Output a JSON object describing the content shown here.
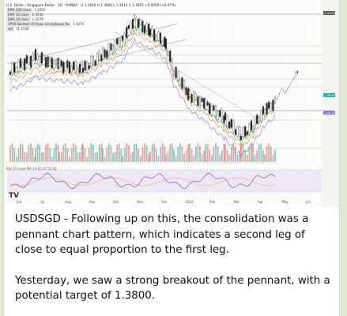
{
  "chart": {
    "symbol_title": "U.S. Dollar / Singapore Dollar · 1D · OANDA",
    "ohlc_readout": "O 1.3640  H 1.3666  L 1.3614  C 1.3655  +0.0009 (+0.07%)",
    "indicators": [
      {
        "label": "EMA 200 close",
        "value": "1.3452"
      },
      {
        "label": "EMA 50 close",
        "value": "1.3530"
      },
      {
        "label": "EMA 20 close",
        "value": "1.3579"
      },
      {
        "label": "VPVR Number Of Rows 24 Up/Down No",
        "value": "1.3474"
      },
      {
        "label": "Vol",
        "value": "71.473K"
      }
    ],
    "rsi_label": "RSI 14 close  MA 14  62.37  53.50",
    "x_ticks": [
      "Jun",
      "Jul",
      "Aug",
      "Sep",
      "Oct",
      "Nov",
      "Dec",
      "2023",
      "Feb",
      "Mar",
      "Apr",
      "May",
      "Jun"
    ],
    "price_badges": [
      "1.4500",
      "1.3655",
      "1.3474"
    ],
    "colors": {
      "up": "#26a69a",
      "down": "#ef5350",
      "ema200": "#8a6fd1",
      "ema50": "#e08a4a",
      "ema20": "#4caf50",
      "rsi": "#7e57c2",
      "rsi_band": "#ede7f6",
      "accent": "#2962ff"
    }
  },
  "post": {
    "paragraphs": [
      "USDSGD - Following up on this, the consolidation was a pennant chart pattern, which indicates a second leg of close to equal proportion to the first leg.",
      "Yesterday, we saw a strong breakout of the pennant, with a potential target of 1.3800."
    ]
  }
}
